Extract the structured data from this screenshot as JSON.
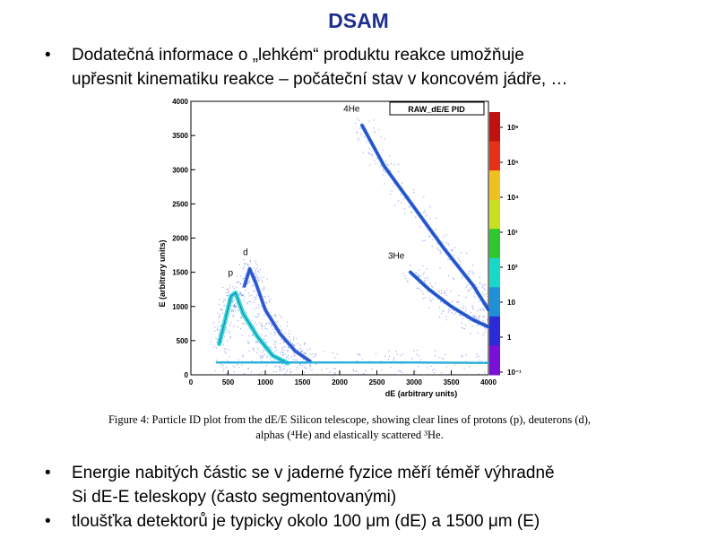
{
  "slide": {
    "title": "DSAM",
    "bullets": [
      {
        "marker": "•",
        "lines": [
          "Dodatečná informace o „lehkém“ produktu reakce umožňuje",
          "upřesnit kinematiku reakce – počáteční stav v koncovém jádře, …"
        ]
      },
      {
        "marker": "•",
        "lines": [
          "Energie nabitých částic se v jaderné fyzice měří téměř výhradně",
          "Si dE-E teleskopy (často segmentovanými)"
        ]
      },
      {
        "marker": "•",
        "lines": [
          "tloušťka detektorů je typicky okolo 100 μm (dE) a 1500 μm (E)"
        ]
      }
    ],
    "caption": {
      "line1": "Figure 4: Particle ID plot from the dE/E Silicon telescope, showing clear lines of protons (p), deuterons (d),",
      "line2": "alphas (⁴He) and elastically scattered ³He."
    }
  },
  "chart_data": {
    "type": "heatmap",
    "title": "RAW_dE/E PID",
    "xlabel": "dE (arbitrary units)",
    "ylabel": "E (arbitrary units)",
    "xlim": [
      0,
      4000
    ],
    "ylim": [
      0,
      4000
    ],
    "x_ticks": [
      "0",
      "500",
      "1000",
      "1500",
      "2000",
      "2500",
      "3000",
      "3500",
      "4000"
    ],
    "y_ticks": [
      "0",
      "500",
      "1000",
      "1500",
      "2000",
      "2500",
      "3000",
      "3500",
      "4000"
    ],
    "colorbar_ticks": [
      "10⁻¹",
      "1",
      "10",
      "10²",
      "10³",
      "10⁴",
      "10⁵",
      "10⁶"
    ],
    "colorbar_colors": [
      "#7a10d8",
      "#2a2ad8",
      "#1f8fd8",
      "#18d8c8",
      "#2ec82e",
      "#c8e020",
      "#f0c020",
      "#e83018",
      "#c01010"
    ],
    "annotations": [
      {
        "label": "p",
        "x": 500,
        "y": 1450
      },
      {
        "label": "d",
        "x": 700,
        "y": 1750
      },
      {
        "label": "4He",
        "x": 2050,
        "y": 3850
      },
      {
        "label": "3He",
        "x": 2650,
        "y": 1700
      }
    ],
    "bands": [
      {
        "name": "p",
        "color": "#20d8d0",
        "points": [
          [
            380,
            450
          ],
          [
            450,
            750
          ],
          [
            540,
            1150
          ],
          [
            600,
            1200
          ],
          [
            700,
            900
          ],
          [
            900,
            550
          ],
          [
            1100,
            280
          ],
          [
            1300,
            170
          ]
        ]
      },
      {
        "name": "d",
        "color": "#2a5adb",
        "points": [
          [
            720,
            1300
          ],
          [
            790,
            1550
          ],
          [
            870,
            1350
          ],
          [
            1000,
            950
          ],
          [
            1200,
            600
          ],
          [
            1400,
            350
          ],
          [
            1600,
            200
          ]
        ]
      },
      {
        "name": "4He",
        "color": "#1c55d6",
        "points": [
          [
            2300,
            3650
          ],
          [
            2600,
            3050
          ],
          [
            3000,
            2450
          ],
          [
            3400,
            1850
          ],
          [
            3800,
            1300
          ],
          [
            4000,
            950
          ]
        ]
      },
      {
        "name": "3He",
        "color": "#1c55d6",
        "points": [
          [
            2950,
            1500
          ],
          [
            3200,
            1250
          ],
          [
            3500,
            1000
          ],
          [
            3800,
            800
          ],
          [
            4000,
            700
          ]
        ]
      },
      {
        "name": "elastic-line",
        "color": "#1aa8d8",
        "points": [
          [
            350,
            180
          ],
          [
            1000,
            180
          ],
          [
            2000,
            180
          ],
          [
            3000,
            180
          ],
          [
            4000,
            175
          ]
        ]
      }
    ]
  }
}
